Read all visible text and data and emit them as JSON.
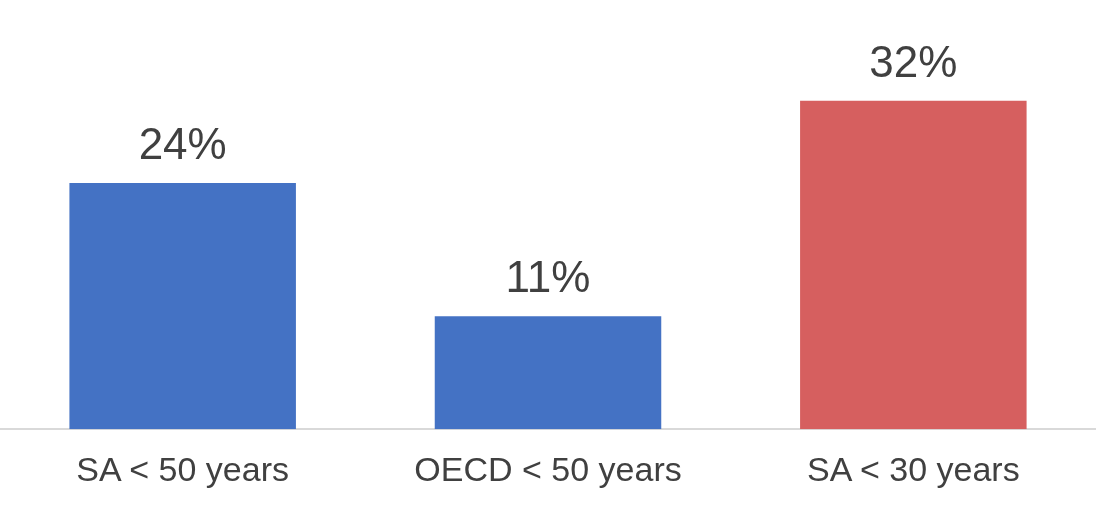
{
  "chart_data": {
    "type": "bar",
    "categories": [
      "SA < 50 years",
      "OECD < 50 years",
      "SA < 30 years"
    ],
    "values": [
      24,
      11,
      32
    ],
    "colors": [
      "#4472c4",
      "#4472c4",
      "#d65f5f"
    ],
    "value_labels": [
      "24%",
      "11%",
      "32%"
    ],
    "grid": false,
    "legend": false
  }
}
